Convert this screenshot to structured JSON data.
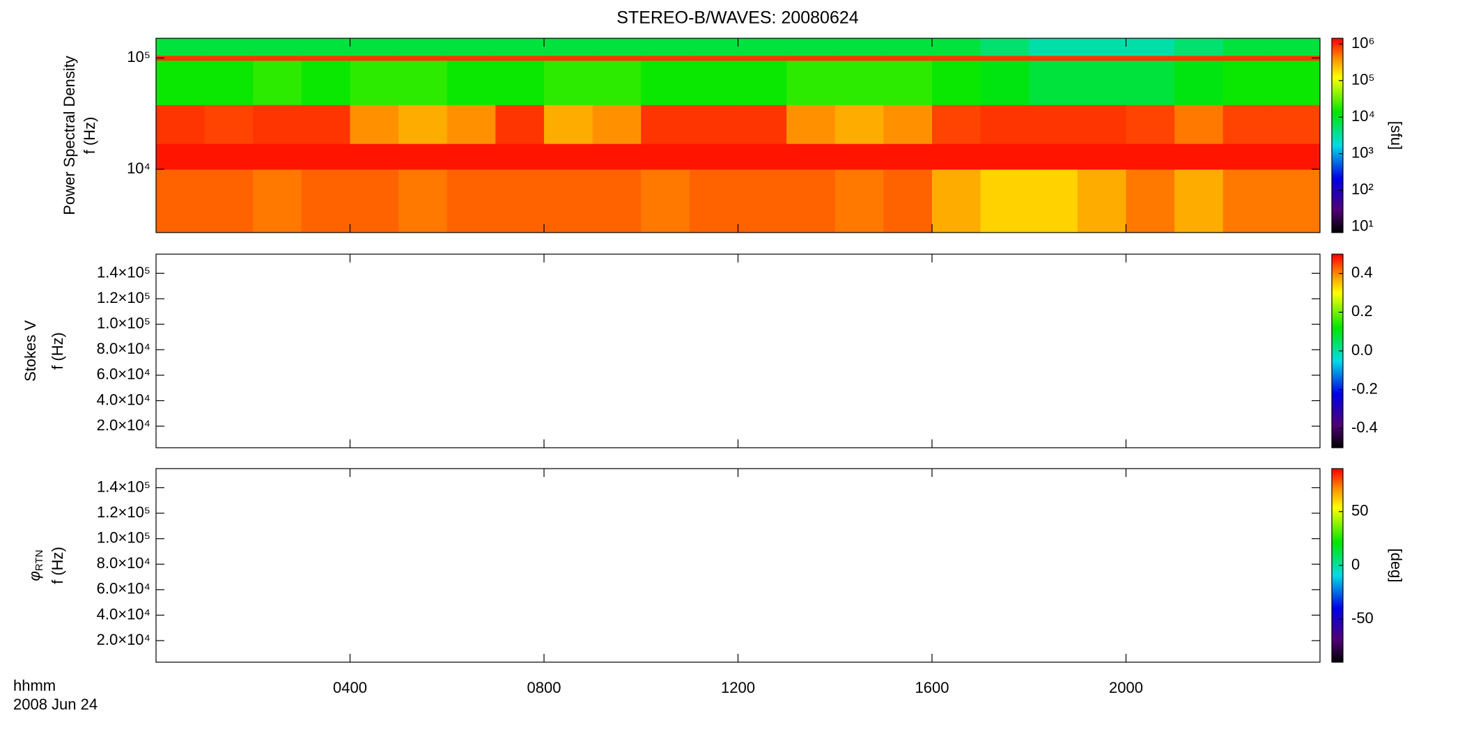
{
  "title": "STEREO-B/WAVES: 20080624",
  "time_label": "hhmm",
  "date_label": "2008 Jun 24",
  "chart_data": [
    {
      "type": "heatmap",
      "ylabel": "Power Spectral Density",
      "ylabel2": "f (Hz)",
      "ylog": true,
      "ylim": [
        2700,
        150000
      ],
      "yticks": [
        {
          "value": 10000,
          "label": "10⁴"
        },
        {
          "value": 100000,
          "label": "10⁵"
        }
      ],
      "xlim": [
        0,
        24
      ],
      "xticks": [
        {
          "value": 4,
          "label": "0400"
        },
        {
          "value": 8,
          "label": "0800"
        },
        {
          "value": 12,
          "label": "1200"
        },
        {
          "value": 16,
          "label": "1600"
        },
        {
          "value": 20,
          "label": "2000"
        }
      ],
      "x": [
        0,
        1,
        2,
        3,
        4,
        5,
        6,
        7,
        8,
        9,
        10,
        11,
        12,
        13,
        14,
        15,
        16,
        17,
        18,
        19,
        20,
        21,
        22,
        23
      ],
      "y_edges": [
        2700,
        10000,
        17000,
        38000,
        95000,
        105000,
        150000
      ],
      "values": [
        [
          600000,
          600000,
          500000,
          600000,
          600000,
          500000,
          600000,
          600000,
          600000,
          600000,
          500000,
          600000,
          600000,
          600000,
          500000,
          600000,
          300000,
          200000,
          200000,
          300000,
          500000,
          300000,
          500000,
          500000
        ],
        [
          1200000,
          1200000,
          1200000,
          1200000,
          1200000,
          1200000,
          1200000,
          1200000,
          1200000,
          1200000,
          1200000,
          1200000,
          1200000,
          1200000,
          1200000,
          1200000,
          1200000,
          1200000,
          1200000,
          1200000,
          1200000,
          1200000,
          1200000,
          1200000
        ],
        [
          900000,
          800000,
          900000,
          900000,
          400000,
          300000,
          400000,
          900000,
          300000,
          400000,
          900000,
          900000,
          900000,
          400000,
          300000,
          400000,
          800000,
          900000,
          900000,
          900000,
          800000,
          500000,
          800000,
          800000
        ],
        [
          15000,
          15000,
          20000,
          15000,
          20000,
          20000,
          15000,
          15000,
          20000,
          20000,
          15000,
          15000,
          15000,
          20000,
          20000,
          20000,
          15000,
          12000,
          8000,
          8000,
          8000,
          12000,
          15000,
          15000
        ],
        [
          900000,
          900000,
          900000,
          900000,
          900000,
          900000,
          900000,
          900000,
          900000,
          900000,
          900000,
          900000,
          900000,
          900000,
          900000,
          900000,
          900000,
          900000,
          900000,
          900000,
          900000,
          900000,
          900000,
          900000
        ],
        [
          8000,
          8000,
          8000,
          8000,
          8000,
          8000,
          8000,
          8000,
          8000,
          8000,
          8000,
          8000,
          8000,
          8000,
          8000,
          8000,
          8000,
          5000,
          3000,
          3000,
          3000,
          5000,
          8000,
          8000
        ]
      ],
      "clog": true,
      "clim": [
        7,
        1430000
      ],
      "cticks": [
        {
          "value": 10,
          "label": "10¹"
        },
        {
          "value": 100,
          "label": "10²"
        },
        {
          "value": 1000,
          "label": "10³"
        },
        {
          "value": 10000,
          "label": "10⁴"
        },
        {
          "value": 100000,
          "label": "10⁵"
        },
        {
          "value": 1000000,
          "label": "10⁶"
        }
      ],
      "clabel": "[sfu]"
    },
    {
      "type": "heatmap",
      "ylabel": "Stokes V",
      "ylabel2": "f (Hz)",
      "ylim": [
        3100,
        155000
      ],
      "yticks": [
        {
          "value": 20000,
          "label": "2.0×10⁴"
        },
        {
          "value": 40000,
          "label": "4.0×10⁴"
        },
        {
          "value": 60000,
          "label": "6.0×10⁴"
        },
        {
          "value": 80000,
          "label": "8.0×10⁴"
        },
        {
          "value": 100000,
          "label": "1.0×10⁵"
        },
        {
          "value": 120000,
          "label": "1.2×10⁵"
        },
        {
          "value": 140000,
          "label": "1.4×10⁵"
        }
      ],
      "xlim": [
        0,
        24
      ],
      "xticks": [
        {
          "value": 4,
          "label": "0400"
        },
        {
          "value": 8,
          "label": "0800"
        },
        {
          "value": 12,
          "label": "1200"
        },
        {
          "value": 16,
          "label": "1600"
        },
        {
          "value": 20,
          "label": "2000"
        }
      ],
      "clim": [
        -0.5,
        0.5
      ],
      "cticks": [
        -0.4,
        -0.2,
        {
          "value": 0,
          "label": "0.0"
        },
        0.2,
        0.4
      ]
    },
    {
      "type": "heatmap",
      "ylabel_symbol": "φ",
      "ylabel_subscript": "RTN",
      "ylabel2": "f (Hz)",
      "ylim": [
        3100,
        155000
      ],
      "yticks": [
        {
          "value": 20000,
          "label": "2.0×10⁴"
        },
        {
          "value": 40000,
          "label": "4.0×10⁴"
        },
        {
          "value": 60000,
          "label": "6.0×10⁴"
        },
        {
          "value": 80000,
          "label": "8.0×10⁴"
        },
        {
          "value": 100000,
          "label": "1.0×10⁵"
        },
        {
          "value": 120000,
          "label": "1.2×10⁵"
        },
        {
          "value": 140000,
          "label": "1.4×10⁵"
        }
      ],
      "xlim": [
        0,
        24
      ],
      "xticks": [
        {
          "value": 4,
          "label": "0400"
        },
        {
          "value": 8,
          "label": "0800"
        },
        {
          "value": 12,
          "label": "1200"
        },
        {
          "value": 16,
          "label": "1600"
        },
        {
          "value": 20,
          "label": "2000"
        }
      ],
      "clim": [
        -90,
        90
      ],
      "cticks": [
        -50,
        0,
        50
      ],
      "clabel": "[deg]"
    }
  ]
}
